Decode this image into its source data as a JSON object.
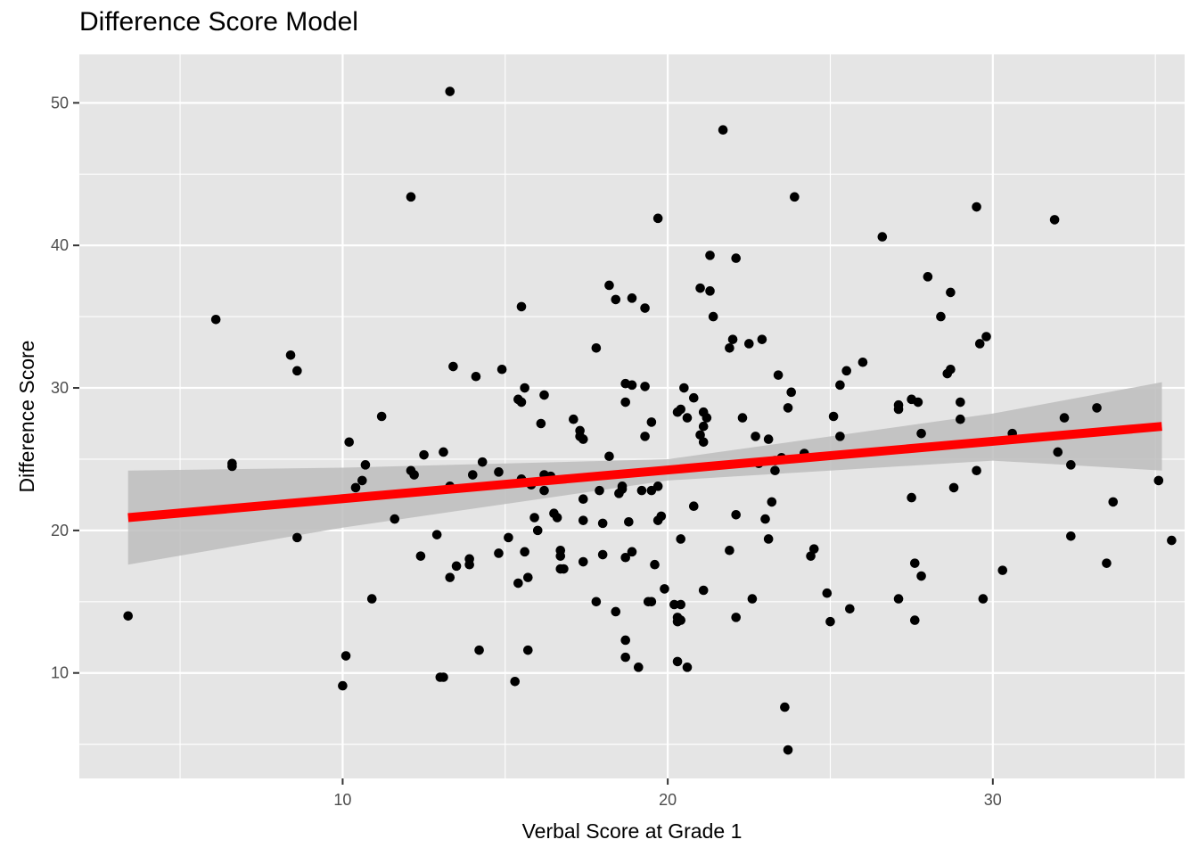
{
  "chart_data": {
    "type": "scatter",
    "title": "Difference Score Model",
    "xlabel": "Verbal Score at Grade 1",
    "ylabel": "Difference Score",
    "xlim": [
      1.9,
      35.9
    ],
    "ylim": [
      2.6,
      53.4
    ],
    "x_major_ticks": [
      10,
      20,
      30
    ],
    "y_major_ticks": [
      10,
      20,
      30,
      40,
      50
    ],
    "x_minor_ticks": [
      5,
      15,
      25,
      35
    ],
    "y_minor_ticks": [
      5,
      15,
      25,
      35,
      45
    ],
    "grid": true,
    "colors": {
      "panel": "#e5e5e5",
      "grid": "#ffffff",
      "points": "#000000",
      "fit_line": "#ff0000",
      "ribbon": "#bdbdbd"
    },
    "fit_line": {
      "x": [
        3.4,
        35.2
      ],
      "y": [
        20.9,
        27.3
      ]
    },
    "confidence_band": {
      "x": [
        3.4,
        10,
        20,
        30,
        35.2
      ],
      "lower": [
        17.6,
        20.2,
        23.5,
        24.9,
        24.2
      ],
      "upper": [
        24.2,
        24.4,
        25.0,
        28.2,
        30.4
      ]
    },
    "points": [
      [
        3.4,
        14.0
      ],
      [
        6.1,
        34.8
      ],
      [
        6.6,
        24.7
      ],
      [
        6.6,
        24.5
      ],
      [
        8.4,
        32.3
      ],
      [
        8.6,
        31.2
      ],
      [
        8.6,
        19.5
      ],
      [
        10.0,
        9.1
      ],
      [
        10.1,
        11.2
      ],
      [
        10.2,
        26.2
      ],
      [
        10.4,
        23.0
      ],
      [
        10.6,
        23.5
      ],
      [
        10.7,
        24.6
      ],
      [
        10.9,
        15.2
      ],
      [
        11.2,
        28.0
      ],
      [
        11.6,
        20.8
      ],
      [
        12.1,
        24.2
      ],
      [
        12.1,
        43.4
      ],
      [
        12.2,
        23.9
      ],
      [
        12.4,
        18.2
      ],
      [
        12.5,
        25.3
      ],
      [
        12.9,
        19.7
      ],
      [
        13.0,
        9.7
      ],
      [
        13.1,
        9.7
      ],
      [
        13.1,
        25.5
      ],
      [
        13.3,
        50.8
      ],
      [
        13.3,
        16.7
      ],
      [
        13.3,
        23.1
      ],
      [
        13.4,
        31.5
      ],
      [
        13.5,
        17.5
      ],
      [
        13.9,
        17.6
      ],
      [
        13.9,
        18.0
      ],
      [
        14.0,
        23.9
      ],
      [
        14.1,
        30.8
      ],
      [
        14.2,
        11.6
      ],
      [
        14.3,
        24.8
      ],
      [
        14.8,
        18.4
      ],
      [
        14.8,
        24.1
      ],
      [
        14.9,
        31.3
      ],
      [
        15.1,
        19.5
      ],
      [
        15.3,
        9.4
      ],
      [
        15.4,
        16.3
      ],
      [
        15.4,
        29.2
      ],
      [
        15.5,
        23.6
      ],
      [
        15.5,
        29.0
      ],
      [
        15.5,
        35.7
      ],
      [
        15.6,
        30.0
      ],
      [
        15.6,
        18.5
      ],
      [
        15.7,
        16.7
      ],
      [
        15.7,
        11.6
      ],
      [
        15.8,
        23.2
      ],
      [
        15.9,
        20.9
      ],
      [
        16.0,
        20.0
      ],
      [
        16.1,
        27.5
      ],
      [
        16.2,
        23.9
      ],
      [
        16.2,
        22.8
      ],
      [
        16.2,
        29.5
      ],
      [
        16.4,
        23.8
      ],
      [
        16.5,
        21.2
      ],
      [
        16.6,
        20.9
      ],
      [
        16.7,
        18.2
      ],
      [
        16.7,
        18.6
      ],
      [
        16.7,
        17.3
      ],
      [
        16.8,
        17.3
      ],
      [
        17.1,
        27.8
      ],
      [
        17.3,
        27.0
      ],
      [
        17.3,
        26.6
      ],
      [
        17.4,
        17.8
      ],
      [
        17.4,
        22.2
      ],
      [
        17.4,
        20.7
      ],
      [
        17.4,
        26.4
      ],
      [
        17.8,
        15.0
      ],
      [
        17.8,
        32.8
      ],
      [
        17.9,
        22.8
      ],
      [
        18.0,
        18.3
      ],
      [
        18.0,
        20.5
      ],
      [
        18.2,
        25.2
      ],
      [
        18.2,
        37.2
      ],
      [
        18.4,
        14.3
      ],
      [
        18.4,
        36.2
      ],
      [
        18.5,
        22.6
      ],
      [
        18.6,
        22.9
      ],
      [
        18.6,
        23.1
      ],
      [
        18.7,
        11.1
      ],
      [
        18.7,
        12.3
      ],
      [
        18.7,
        29.0
      ],
      [
        18.7,
        30.3
      ],
      [
        18.7,
        18.1
      ],
      [
        18.8,
        20.6
      ],
      [
        18.9,
        18.5
      ],
      [
        18.9,
        36.3
      ],
      [
        18.9,
        30.2
      ],
      [
        19.1,
        10.4
      ],
      [
        19.2,
        22.8
      ],
      [
        19.3,
        26.6
      ],
      [
        19.3,
        30.1
      ],
      [
        19.3,
        35.6
      ],
      [
        19.4,
        15.0
      ],
      [
        19.5,
        15.0
      ],
      [
        19.5,
        22.8
      ],
      [
        19.5,
        27.6
      ],
      [
        19.6,
        17.6
      ],
      [
        19.7,
        20.7
      ],
      [
        19.7,
        23.1
      ],
      [
        19.7,
        41.9
      ],
      [
        19.8,
        21.0
      ],
      [
        19.9,
        15.9
      ],
      [
        20.2,
        14.8
      ],
      [
        20.3,
        28.3
      ],
      [
        20.3,
        10.8
      ],
      [
        20.3,
        13.9
      ],
      [
        20.3,
        13.6
      ],
      [
        20.4,
        14.8
      ],
      [
        20.4,
        19.4
      ],
      [
        20.4,
        13.7
      ],
      [
        20.4,
        28.5
      ],
      [
        20.5,
        30.0
      ],
      [
        20.6,
        27.9
      ],
      [
        20.6,
        10.4
      ],
      [
        20.8,
        21.7
      ],
      [
        20.8,
        29.3
      ],
      [
        21.0,
        37.0
      ],
      [
        21.0,
        26.7
      ],
      [
        21.1,
        15.8
      ],
      [
        21.1,
        28.3
      ],
      [
        21.1,
        26.2
      ],
      [
        21.1,
        27.3
      ],
      [
        21.2,
        27.9
      ],
      [
        21.3,
        39.3
      ],
      [
        21.3,
        36.8
      ],
      [
        21.4,
        35.0
      ],
      [
        21.7,
        48.1
      ],
      [
        21.9,
        18.6
      ],
      [
        21.9,
        32.8
      ],
      [
        22.0,
        33.4
      ],
      [
        22.1,
        21.1
      ],
      [
        22.1,
        13.9
      ],
      [
        22.1,
        39.1
      ],
      [
        22.3,
        27.9
      ],
      [
        22.5,
        33.1
      ],
      [
        22.6,
        15.2
      ],
      [
        22.7,
        26.6
      ],
      [
        22.8,
        24.7
      ],
      [
        22.9,
        33.4
      ],
      [
        23.0,
        20.8
      ],
      [
        23.1,
        19.4
      ],
      [
        23.1,
        26.4
      ],
      [
        23.2,
        22.0
      ],
      [
        23.3,
        24.9
      ],
      [
        23.3,
        24.2
      ],
      [
        23.4,
        30.9
      ],
      [
        23.5,
        25.1
      ],
      [
        23.6,
        7.6
      ],
      [
        23.7,
        28.6
      ],
      [
        23.7,
        4.6
      ],
      [
        23.8,
        29.7
      ],
      [
        23.9,
        43.4
      ],
      [
        24.2,
        25.4
      ],
      [
        24.4,
        18.2
      ],
      [
        24.5,
        18.7
      ],
      [
        24.9,
        15.6
      ],
      [
        25.0,
        13.6
      ],
      [
        25.1,
        28.0
      ],
      [
        25.3,
        30.2
      ],
      [
        25.3,
        26.6
      ],
      [
        25.5,
        31.2
      ],
      [
        25.6,
        14.5
      ],
      [
        26.0,
        31.8
      ],
      [
        26.6,
        40.6
      ],
      [
        27.1,
        15.2
      ],
      [
        27.1,
        28.5
      ],
      [
        27.1,
        28.8
      ],
      [
        27.5,
        29.2
      ],
      [
        27.5,
        22.3
      ],
      [
        27.6,
        13.7
      ],
      [
        27.6,
        17.7
      ],
      [
        27.7,
        29.0
      ],
      [
        27.8,
        26.8
      ],
      [
        27.8,
        16.8
      ],
      [
        28.0,
        37.8
      ],
      [
        28.4,
        35.0
      ],
      [
        28.6,
        31.0
      ],
      [
        28.7,
        36.7
      ],
      [
        28.7,
        31.3
      ],
      [
        28.8,
        23.0
      ],
      [
        29.0,
        27.8
      ],
      [
        29.0,
        29.0
      ],
      [
        29.5,
        42.7
      ],
      [
        29.5,
        24.2
      ],
      [
        29.6,
        33.1
      ],
      [
        29.7,
        15.2
      ],
      [
        29.8,
        33.6
      ],
      [
        30.3,
        17.2
      ],
      [
        30.6,
        26.8
      ],
      [
        31.9,
        41.8
      ],
      [
        32.0,
        25.5
      ],
      [
        32.2,
        27.9
      ],
      [
        32.4,
        24.6
      ],
      [
        32.4,
        19.6
      ],
      [
        33.2,
        28.6
      ],
      [
        33.5,
        17.7
      ],
      [
        33.7,
        22.0
      ],
      [
        35.1,
        23.5
      ],
      [
        35.5,
        19.3
      ]
    ]
  }
}
